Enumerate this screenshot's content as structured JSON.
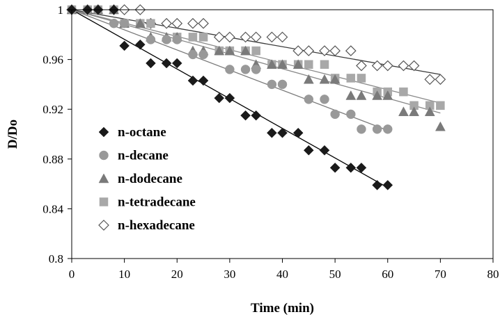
{
  "chart_data": {
    "type": "scatter",
    "xlabel": "Time (min)",
    "ylabel": "D/Do",
    "xlim": [
      0,
      80
    ],
    "ylim": [
      0.8,
      1.0
    ],
    "xticks": [
      0,
      10,
      20,
      30,
      40,
      50,
      60,
      70,
      80
    ],
    "yticks": [
      0.8,
      0.84,
      0.88,
      0.92,
      0.96,
      1
    ],
    "xtick_labels": [
      "0",
      "10",
      "20",
      "30",
      "40",
      "50",
      "60",
      "70",
      "80"
    ],
    "ytick_labels": [
      "0.8",
      "0.84",
      "0.88",
      "0.92",
      "0.96",
      "1"
    ],
    "grid": false,
    "legend_position": "lower-left",
    "series": [
      {
        "name": "n-octane",
        "marker": "diamond-filled",
        "color": "#1a1a1a",
        "x": [
          0,
          3,
          5,
          8,
          10,
          13,
          15,
          18,
          20,
          23,
          25,
          28,
          30,
          33,
          35,
          38,
          40,
          43,
          45,
          48,
          50,
          53,
          55,
          58,
          60
        ],
        "y": [
          1.0,
          1.0,
          1.0,
          1.0,
          0.971,
          0.972,
          0.957,
          0.957,
          0.957,
          0.943,
          0.943,
          0.929,
          0.929,
          0.915,
          0.915,
          0.901,
          0.901,
          0.901,
          0.887,
          0.887,
          0.873,
          0.873,
          0.873,
          0.859,
          0.859
        ],
        "fit": [
          [
            0,
            1.0
          ],
          [
            60,
            0.857
          ]
        ]
      },
      {
        "name": "n-decane",
        "marker": "circle-filled",
        "color": "#999999",
        "x": [
          0,
          3,
          5,
          8,
          10,
          15,
          18,
          20,
          23,
          25,
          30,
          33,
          35,
          38,
          40,
          45,
          48,
          50,
          53,
          55,
          58,
          60
        ],
        "y": [
          1.0,
          1.0,
          1.0,
          0.989,
          0.989,
          0.976,
          0.976,
          0.976,
          0.964,
          0.964,
          0.952,
          0.952,
          0.952,
          0.94,
          0.94,
          0.928,
          0.928,
          0.916,
          0.916,
          0.904,
          0.904,
          0.904
        ],
        "fit": [
          [
            0,
            1.0
          ],
          [
            60,
            0.903
          ]
        ]
      },
      {
        "name": "n-dodecane",
        "marker": "triangle-filled",
        "color": "#7a7a7a",
        "x": [
          0,
          3,
          5,
          8,
          10,
          13,
          15,
          18,
          20,
          23,
          25,
          28,
          30,
          33,
          35,
          38,
          40,
          43,
          45,
          48,
          50,
          53,
          55,
          58,
          60,
          63,
          65,
          68,
          70
        ],
        "y": [
          1.0,
          1.0,
          1.0,
          1.0,
          0.989,
          0.989,
          0.978,
          0.978,
          0.978,
          0.967,
          0.967,
          0.967,
          0.967,
          0.967,
          0.956,
          0.956,
          0.956,
          0.956,
          0.944,
          0.944,
          0.944,
          0.931,
          0.931,
          0.931,
          0.931,
          0.918,
          0.918,
          0.918,
          0.906
        ],
        "fit": [
          [
            0,
            1.0
          ],
          [
            70,
            0.917
          ]
        ]
      },
      {
        "name": "n-tetradecane",
        "marker": "square-filled",
        "color": "#a8a8a8",
        "x": [
          0,
          3,
          5,
          8,
          10,
          13,
          15,
          20,
          23,
          25,
          28,
          30,
          33,
          35,
          38,
          40,
          43,
          45,
          48,
          50,
          53,
          55,
          58,
          60,
          63,
          65,
          68,
          70
        ],
        "y": [
          1.0,
          1.0,
          1.0,
          1.0,
          0.989,
          0.989,
          0.989,
          0.978,
          0.978,
          0.978,
          0.967,
          0.967,
          0.967,
          0.967,
          0.956,
          0.956,
          0.956,
          0.956,
          0.956,
          0.945,
          0.945,
          0.945,
          0.934,
          0.934,
          0.934,
          0.923,
          0.923,
          0.923
        ],
        "fit": [
          [
            0,
            1.0
          ],
          [
            70,
            0.925
          ]
        ]
      },
      {
        "name": "n-hexadecane",
        "marker": "diamond-open",
        "color": "#555555",
        "x": [
          0,
          3,
          5,
          8,
          10,
          13,
          15,
          18,
          20,
          23,
          25,
          28,
          30,
          33,
          35,
          38,
          40,
          43,
          45,
          48,
          50,
          53,
          55,
          58,
          60,
          63,
          65,
          68,
          70
        ],
        "y": [
          1.0,
          1.0,
          1.0,
          1.0,
          1.0,
          1.0,
          0.989,
          0.989,
          0.989,
          0.989,
          0.989,
          0.978,
          0.978,
          0.978,
          0.978,
          0.978,
          0.978,
          0.967,
          0.967,
          0.967,
          0.967,
          0.967,
          0.955,
          0.955,
          0.955,
          0.955,
          0.955,
          0.944,
          0.944
        ],
        "fit": [
          [
            0,
            1.0
          ],
          [
            70,
            0.948
          ]
        ]
      }
    ]
  }
}
